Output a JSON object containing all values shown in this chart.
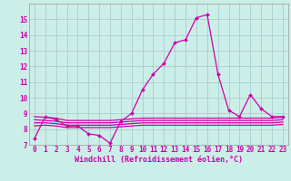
{
  "x": [
    0,
    1,
    2,
    3,
    4,
    5,
    6,
    7,
    8,
    9,
    10,
    11,
    12,
    13,
    14,
    15,
    16,
    17,
    18,
    19,
    20,
    21,
    22,
    23
  ],
  "y_main": [
    7.4,
    8.8,
    8.6,
    8.2,
    8.2,
    7.7,
    7.6,
    7.1,
    8.5,
    9.0,
    10.5,
    11.5,
    12.2,
    13.5,
    13.7,
    15.1,
    15.3,
    11.5,
    9.2,
    8.8,
    10.2,
    9.3,
    8.8,
    8.8
  ],
  "y_flat1": [
    8.8,
    8.75,
    8.7,
    8.55,
    8.55,
    8.55,
    8.55,
    8.55,
    8.6,
    8.65,
    8.7,
    8.7,
    8.7,
    8.7,
    8.7,
    8.7,
    8.7,
    8.7,
    8.7,
    8.7,
    8.7,
    8.7,
    8.7,
    8.75
  ],
  "y_flat2": [
    8.6,
    8.55,
    8.5,
    8.4,
    8.4,
    8.4,
    8.4,
    8.4,
    8.45,
    8.5,
    8.55,
    8.55,
    8.55,
    8.55,
    8.55,
    8.55,
    8.55,
    8.55,
    8.55,
    8.55,
    8.55,
    8.55,
    8.55,
    8.6
  ],
  "y_flat3": [
    8.4,
    8.4,
    8.35,
    8.25,
    8.25,
    8.25,
    8.25,
    8.25,
    8.3,
    8.35,
    8.4,
    8.4,
    8.4,
    8.4,
    8.4,
    8.4,
    8.4,
    8.4,
    8.4,
    8.4,
    8.4,
    8.4,
    8.4,
    8.45
  ],
  "y_flat4": [
    8.2,
    8.25,
    8.2,
    8.1,
    8.1,
    8.1,
    8.1,
    8.1,
    8.15,
    8.2,
    8.25,
    8.25,
    8.25,
    8.25,
    8.25,
    8.25,
    8.25,
    8.25,
    8.25,
    8.25,
    8.25,
    8.25,
    8.25,
    8.3
  ],
  "line_color": "#cc00aa",
  "bg_color": "#cceee8",
  "grid_color": "#aacccc",
  "xlabel": "Windchill (Refroidissement éolien,°C)",
  "ylim": [
    7,
    16
  ],
  "xlim": [
    -0.5,
    23.5
  ],
  "yticks": [
    7,
    8,
    9,
    10,
    11,
    12,
    13,
    14,
    15
  ],
  "xticks": [
    0,
    1,
    2,
    3,
    4,
    5,
    6,
    7,
    8,
    9,
    10,
    11,
    12,
    13,
    14,
    15,
    16,
    17,
    18,
    19,
    20,
    21,
    22,
    23
  ],
  "tick_fontsize": 5.5,
  "label_fontsize": 6.0
}
